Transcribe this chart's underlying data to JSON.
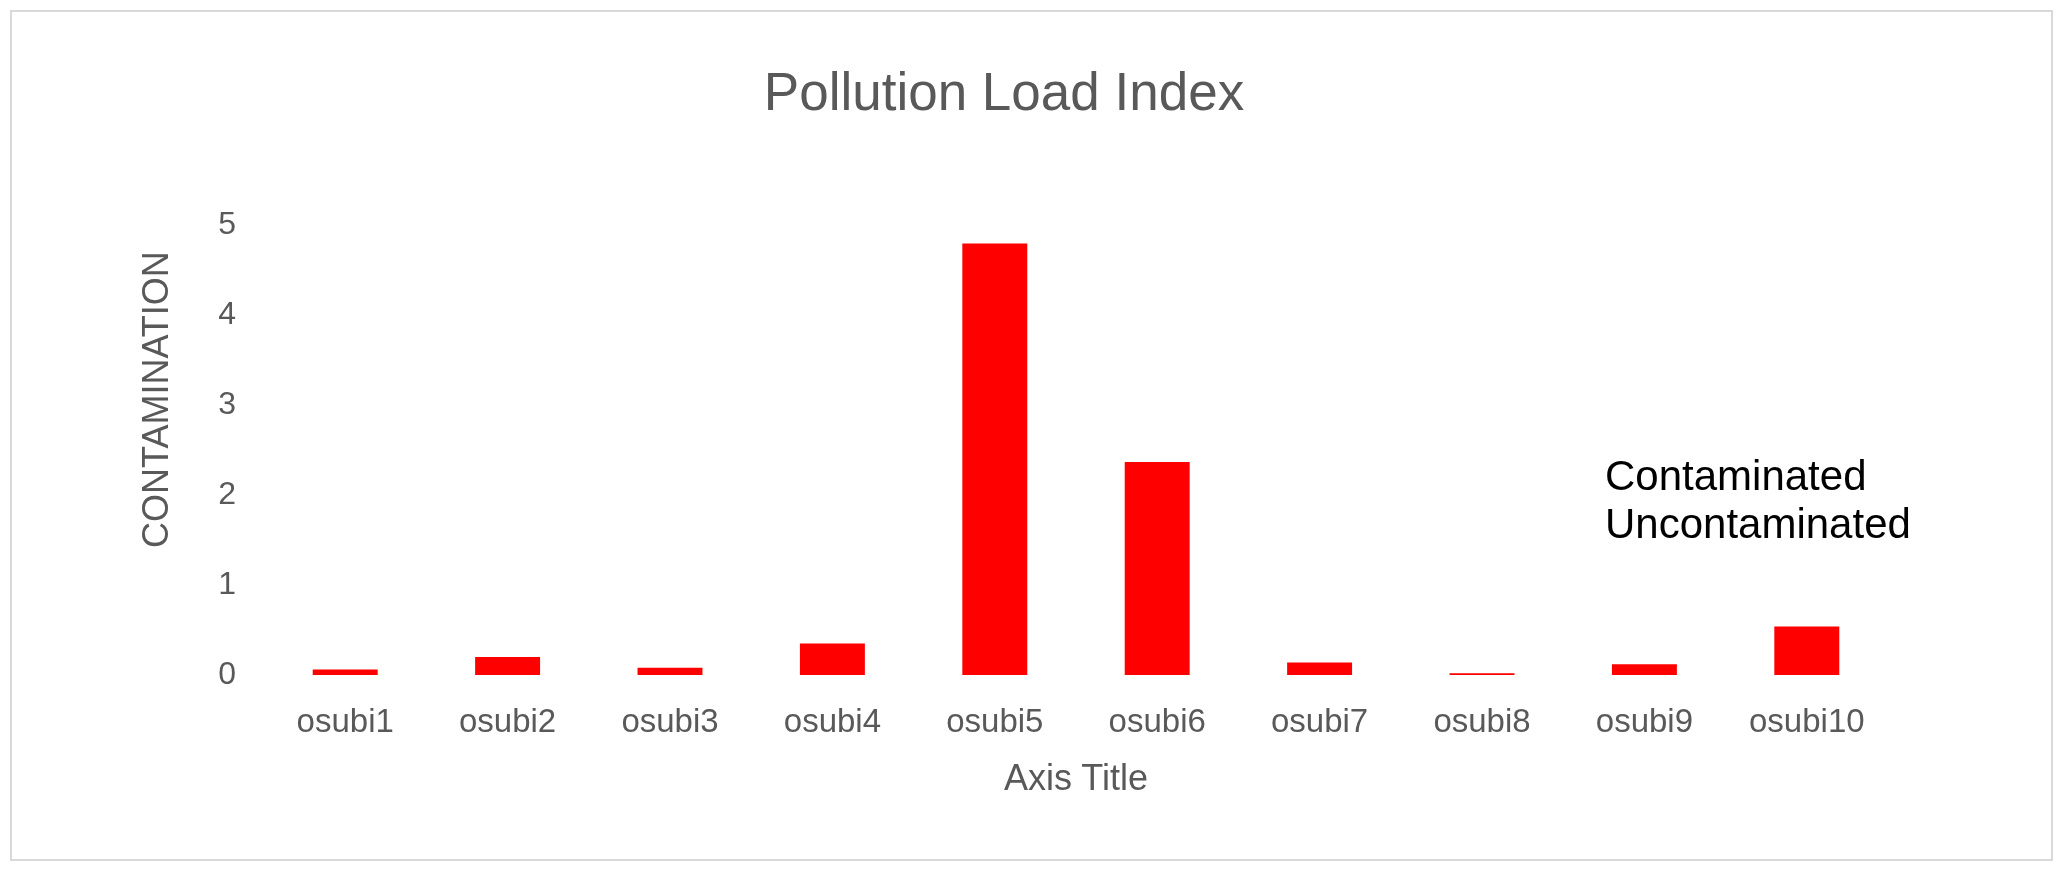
{
  "chart_data": {
    "type": "bar",
    "title": "Pollution Load Index",
    "xlabel": "Axis Title",
    "ylabel": "CONTAMINATION",
    "categories": [
      "osubi1",
      "osubi2",
      "osubi3",
      "osubi4",
      "osubi5",
      "osubi6",
      "osubi7",
      "osubi8",
      "osubi9",
      "osubi10"
    ],
    "values": [
      0.06,
      0.2,
      0.08,
      0.35,
      4.8,
      2.37,
      0.14,
      0.02,
      0.12,
      0.54
    ],
    "color": "#ff0000",
    "ylim": [
      0,
      5
    ],
    "yticks": [
      0,
      1,
      2,
      3,
      4,
      5
    ],
    "annotations": [
      "Contaminated",
      "Uncontaminated"
    ]
  }
}
